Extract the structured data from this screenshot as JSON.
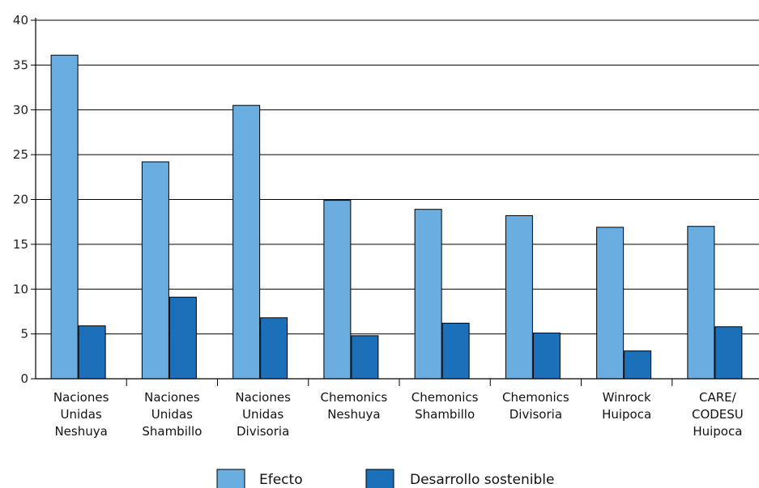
{
  "chart_data": {
    "type": "bar",
    "categories": [
      [
        "Naciones",
        "Unidas",
        "Neshuya"
      ],
      [
        "Naciones",
        "Unidas",
        "Shambillo"
      ],
      [
        "Naciones",
        "Unidas",
        "Divisoria"
      ],
      [
        "Chemonics",
        "Neshuya"
      ],
      [
        "Chemonics",
        "Shambillo"
      ],
      [
        "Chemonics",
        "Divisoria"
      ],
      [
        "Winrock",
        "Huipoca"
      ],
      [
        "CARE/",
        "CODESU",
        "Huipoca"
      ]
    ],
    "series": [
      {
        "name": "Efecto",
        "color": "#6aade0",
        "values": [
          36.1,
          24.2,
          30.5,
          19.9,
          18.9,
          18.2,
          16.9,
          17.0
        ]
      },
      {
        "name": "Desarrollo sostenible",
        "color": "#1b70b9",
        "values": [
          5.9,
          9.1,
          6.8,
          4.8,
          6.2,
          5.1,
          3.1,
          5.8
        ]
      }
    ],
    "ylim": [
      0,
      40
    ],
    "yticks": [
      0,
      5,
      10,
      15,
      20,
      25,
      30,
      35,
      40
    ],
    "grid": true,
    "legend": "bottom"
  }
}
